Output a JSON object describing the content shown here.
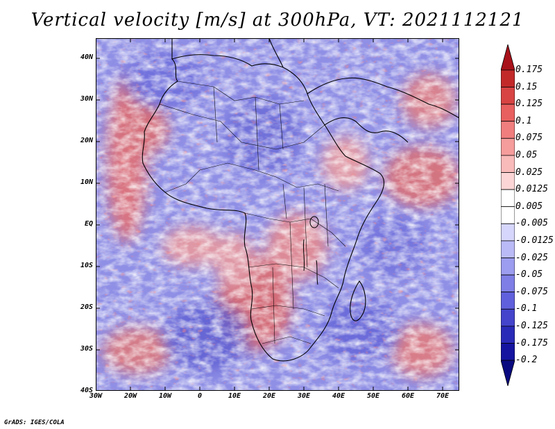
{
  "title": "Vertical velocity [m/s] at 300hPa, VT: 2021112121",
  "x_axis_labels": [
    "30W",
    "20W",
    "10W",
    "0",
    "10E",
    "20E",
    "30E",
    "40E",
    "50E",
    "60E",
    "70E"
  ],
  "y_axis_labels": [
    "40N",
    "30N",
    "20N",
    "10N",
    "EQ",
    "10S",
    "20S",
    "30S",
    "40S"
  ],
  "colorbar": {
    "levels": [
      "0.175",
      "0.15",
      "0.125",
      "0.1",
      "0.075",
      "0.05",
      "0.025",
      "0.0125",
      "0.005",
      "-0.005",
      "-0.0125",
      "-0.025",
      "-0.05",
      "-0.075",
      "-0.1",
      "-0.125",
      "-0.175",
      "-0.2"
    ],
    "colors": [
      "#a8121a",
      "#c22a2a",
      "#d84444",
      "#e86060",
      "#f07e7e",
      "#f59c9c",
      "#f9baba",
      "#fcd6d6",
      "#ffffff",
      "#ffffff",
      "#d6d6fc",
      "#babaf7",
      "#9c9cf0",
      "#7e7ee6",
      "#6060dd",
      "#4444cc",
      "#2a2ab8",
      "#1414a0",
      "#0a0a80"
    ]
  },
  "credit": "GrADS: IGES/COLA",
  "colors": {
    "positive": "#e05050",
    "negative": "#6060e0",
    "neutral": "#ffffff",
    "coast": "#000000"
  }
}
